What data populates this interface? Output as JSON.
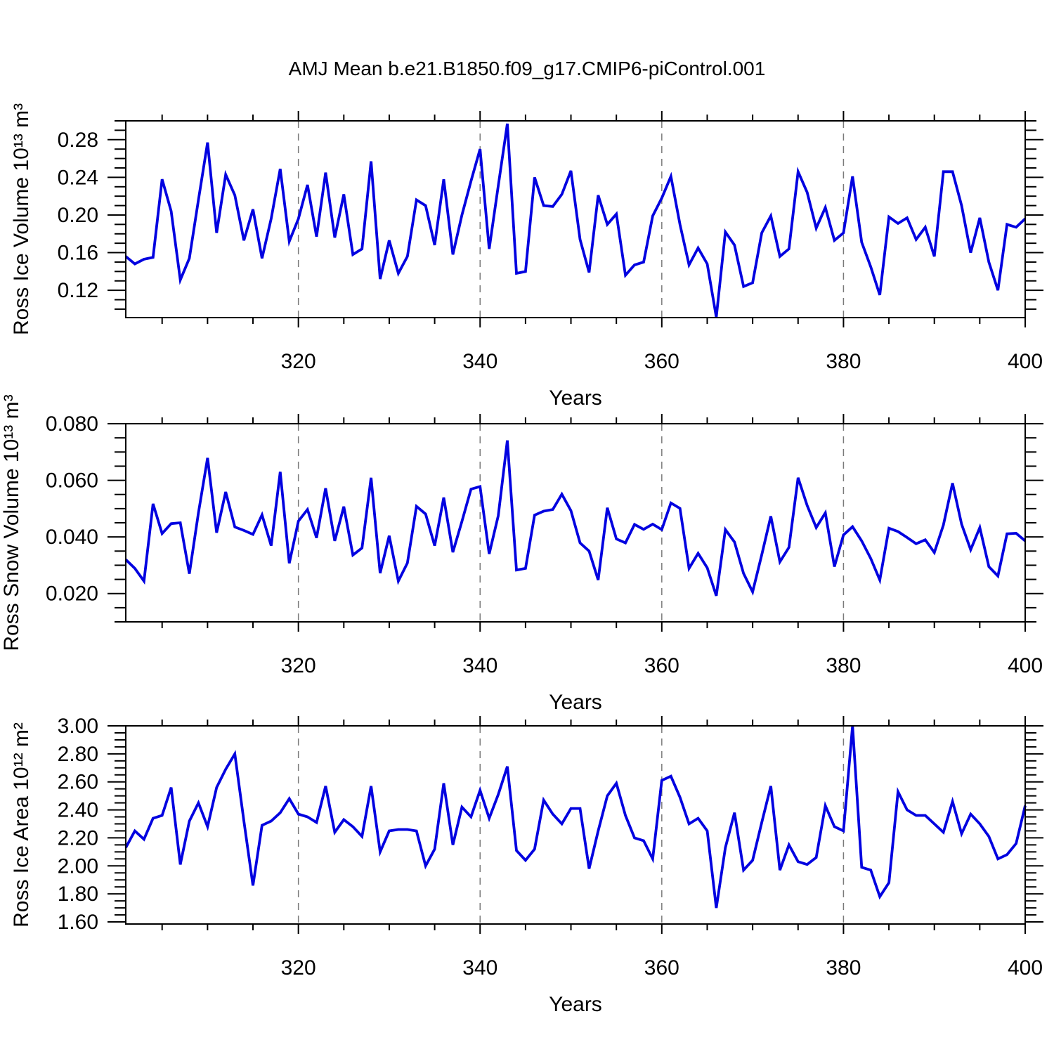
{
  "title": "AMJ Mean b.e21.B1850.f09_g17.CMIP6-piControl.001",
  "colors": {
    "line": "#0202e0",
    "axis": "#000000",
    "grid": "#7a7a7a",
    "background": "#ffffff",
    "text": "#000000"
  },
  "x_axis": {
    "label": "Years",
    "min": 301,
    "max": 400,
    "major_ticks": [
      {
        "v": 320,
        "label": "320"
      },
      {
        "v": 340,
        "label": "340"
      },
      {
        "v": 360,
        "label": "360"
      },
      {
        "v": 380,
        "label": "380"
      },
      {
        "v": 400,
        "label": "400"
      }
    ],
    "minor_step": 5,
    "gridlines": [
      320,
      340,
      360,
      380
    ]
  },
  "chart_data": [
    {
      "type": "line",
      "name": "ross-ice-volume",
      "ylabel": "Ross Ice Volume 10¹³ m³",
      "ylim": [
        0.091,
        0.3
      ],
      "yticks": [
        {
          "v": 0.12,
          "label": "0.12"
        },
        {
          "v": 0.16,
          "label": "0.16"
        },
        {
          "v": 0.2,
          "label": "0.20"
        },
        {
          "v": 0.24,
          "label": "0.24"
        },
        {
          "v": 0.28,
          "label": "0.28"
        }
      ],
      "y_minor_step": 0.01,
      "x_start": 301,
      "values": [
        0.156,
        0.148,
        0.153,
        0.155,
        0.238,
        0.204,
        0.131,
        0.154,
        0.216,
        0.277,
        0.181,
        0.243,
        0.221,
        0.173,
        0.206,
        0.154,
        0.196,
        0.249,
        0.172,
        0.196,
        0.232,
        0.177,
        0.245,
        0.176,
        0.222,
        0.158,
        0.164,
        0.257,
        0.132,
        0.173,
        0.138,
        0.156,
        0.216,
        0.21,
        0.168,
        0.238,
        0.158,
        0.2,
        0.236,
        0.27,
        0.164,
        0.231,
        0.297,
        0.138,
        0.14,
        0.24,
        0.21,
        0.209,
        0.222,
        0.247,
        0.174,
        0.139,
        0.221,
        0.19,
        0.201,
        0.136,
        0.147,
        0.15,
        0.199,
        0.218,
        0.241,
        0.19,
        0.147,
        0.165,
        0.148,
        0.0915,
        0.182,
        0.168,
        0.124,
        0.128,
        0.181,
        0.199,
        0.156,
        0.164,
        0.246,
        0.224,
        0.186,
        0.208,
        0.173,
        0.181,
        0.241,
        0.171,
        0.145,
        0.115,
        0.198,
        0.191,
        0.197,
        0.174,
        0.187,
        0.156,
        0.246,
        0.246,
        0.21,
        0.16,
        0.197,
        0.15,
        0.12,
        0.19,
        0.187,
        0.196
      ]
    },
    {
      "type": "line",
      "name": "ross-snow-volume",
      "ylabel": "Ross Snow Volume 10¹³ m³",
      "ylim": [
        0.01,
        0.08
      ],
      "yticks": [
        {
          "v": 0.02,
          "label": "0.020"
        },
        {
          "v": 0.04,
          "label": "0.040"
        },
        {
          "v": 0.06,
          "label": "0.060"
        },
        {
          "v": 0.08,
          "label": "0.080"
        }
      ],
      "y_minor_step": 0.005,
      "x_start": 301,
      "values": [
        0.032,
        0.0289,
        0.0244,
        0.0517,
        0.0412,
        0.0447,
        0.045,
        0.027,
        0.0485,
        0.0679,
        0.0415,
        0.0559,
        0.0435,
        0.0423,
        0.0409,
        0.0478,
        0.0369,
        0.063,
        0.0307,
        0.0456,
        0.0497,
        0.0397,
        0.0572,
        0.0386,
        0.0507,
        0.0336,
        0.0361,
        0.0609,
        0.0272,
        0.0404,
        0.0244,
        0.0308,
        0.0508,
        0.0481,
        0.0369,
        0.0539,
        0.0346,
        0.0455,
        0.0569,
        0.0578,
        0.034,
        0.0475,
        0.0741,
        0.0283,
        0.0289,
        0.0477,
        0.0491,
        0.0497,
        0.0551,
        0.0493,
        0.0379,
        0.035,
        0.0248,
        0.0503,
        0.0393,
        0.0379,
        0.0444,
        0.0427,
        0.0445,
        0.0426,
        0.052,
        0.0501,
        0.0289,
        0.0342,
        0.0291,
        0.0192,
        0.0426,
        0.0382,
        0.0271,
        0.0206,
        0.0337,
        0.0473,
        0.0312,
        0.0363,
        0.0609,
        0.0511,
        0.0433,
        0.0485,
        0.0295,
        0.0407,
        0.0436,
        0.0386,
        0.0324,
        0.0248,
        0.0431,
        0.0419,
        0.0398,
        0.0376,
        0.039,
        0.0345,
        0.0442,
        0.059,
        0.0445,
        0.0355,
        0.0433,
        0.0295,
        0.0262,
        0.0411,
        0.0413,
        0.0386
      ]
    },
    {
      "type": "line",
      "name": "ross-ice-area",
      "ylabel": "Ross Ice Area 10¹² m²",
      "ylim": [
        1.585,
        3.0
      ],
      "yticks": [
        {
          "v": 1.6,
          "label": "1.60"
        },
        {
          "v": 1.8,
          "label": "1.80"
        },
        {
          "v": 2.0,
          "label": "2.00"
        },
        {
          "v": 2.2,
          "label": "2.20"
        },
        {
          "v": 2.4,
          "label": "2.40"
        },
        {
          "v": 2.6,
          "label": "2.60"
        },
        {
          "v": 2.8,
          "label": "2.80"
        },
        {
          "v": 3.0,
          "label": "3.00"
        }
      ],
      "y_minor_step": 0.05,
      "x_start": 301,
      "values": [
        2.13,
        2.25,
        2.19,
        2.34,
        2.36,
        2.56,
        2.01,
        2.32,
        2.45,
        2.28,
        2.56,
        2.69,
        2.8,
        2.32,
        1.86,
        2.29,
        2.32,
        2.38,
        2.48,
        2.37,
        2.35,
        2.31,
        2.57,
        2.24,
        2.33,
        2.28,
        2.21,
        2.57,
        2.1,
        2.25,
        2.26,
        2.26,
        2.25,
        2.0,
        2.12,
        2.59,
        2.15,
        2.42,
        2.35,
        2.54,
        2.34,
        2.51,
        2.71,
        2.11,
        2.04,
        2.12,
        2.47,
        2.37,
        2.3,
        2.41,
        2.41,
        1.98,
        2.25,
        2.5,
        2.59,
        2.36,
        2.2,
        2.18,
        2.05,
        2.61,
        2.64,
        2.49,
        2.3,
        2.34,
        2.25,
        1.7,
        2.13,
        2.38,
        1.97,
        2.04,
        2.31,
        2.57,
        1.97,
        2.15,
        2.03,
        2.01,
        2.06,
        2.43,
        2.28,
        2.25,
        3.0,
        1.99,
        1.97,
        1.78,
        1.88,
        2.53,
        2.4,
        2.36,
        2.36,
        2.3,
        2.24,
        2.46,
        2.23,
        2.37,
        2.3,
        2.21,
        2.05,
        2.08,
        2.16,
        2.43
      ]
    }
  ]
}
